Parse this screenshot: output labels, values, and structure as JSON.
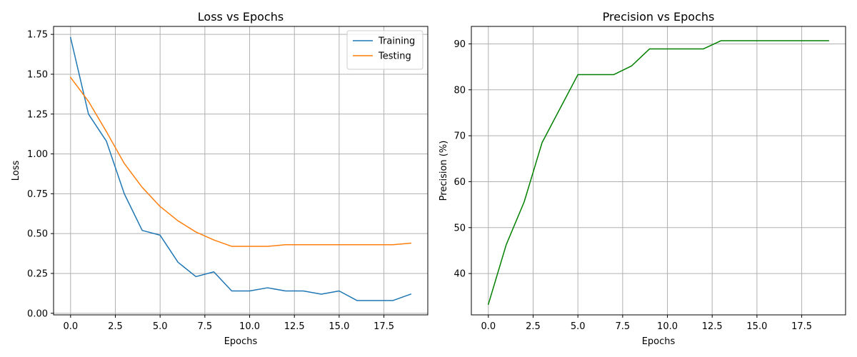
{
  "chart_data": [
    {
      "type": "line",
      "title": "Loss vs Epochs",
      "xlabel": "Epochs",
      "ylabel": "Loss",
      "xlim": [
        -0.95,
        19.95
      ],
      "ylim": [
        -0.01,
        1.8
      ],
      "xticks": [
        0.0,
        2.5,
        5.0,
        7.5,
        10.0,
        12.5,
        15.0,
        17.5
      ],
      "xtick_labels": [
        "0.0",
        "2.5",
        "5.0",
        "7.5",
        "10.0",
        "12.5",
        "15.0",
        "17.5"
      ],
      "yticks": [
        0.0,
        0.25,
        0.5,
        0.75,
        1.0,
        1.25,
        1.5,
        1.75
      ],
      "ytick_labels": [
        "0.00",
        "0.25",
        "0.50",
        "0.75",
        "1.00",
        "1.25",
        "1.50",
        "1.75"
      ],
      "grid": true,
      "legend_position": "top-right",
      "x": [
        0,
        1,
        2,
        3,
        4,
        5,
        6,
        7,
        8,
        9,
        10,
        11,
        12,
        13,
        14,
        15,
        16,
        17,
        18,
        19
      ],
      "series": [
        {
          "name": "Training",
          "color": "#1f77b4",
          "values": [
            1.73,
            1.25,
            1.08,
            0.75,
            0.52,
            0.49,
            0.32,
            0.23,
            0.26,
            0.14,
            0.14,
            0.16,
            0.14,
            0.14,
            0.12,
            0.14,
            0.08,
            0.08,
            0.08,
            0.12
          ]
        },
        {
          "name": "Testing",
          "color": "#ff7f0e",
          "values": [
            1.48,
            1.33,
            1.14,
            0.94,
            0.79,
            0.67,
            0.58,
            0.51,
            0.46,
            0.42,
            0.42,
            0.42,
            0.43,
            0.43,
            0.43,
            0.43,
            0.43,
            0.43,
            0.43,
            0.44
          ]
        }
      ]
    },
    {
      "type": "line",
      "title": "Precision vs Epochs",
      "xlabel": "Epochs",
      "ylabel": "Precision (%)",
      "xlim": [
        -0.95,
        19.95
      ],
      "ylim": [
        31.0,
        93.8
      ],
      "xticks": [
        0.0,
        2.5,
        5.0,
        7.5,
        10.0,
        12.5,
        15.0,
        17.5
      ],
      "xtick_labels": [
        "0.0",
        "2.5",
        "5.0",
        "7.5",
        "10.0",
        "12.5",
        "15.0",
        "17.5"
      ],
      "yticks": [
        40,
        50,
        60,
        70,
        80,
        90
      ],
      "ytick_labels": [
        "40",
        "50",
        "60",
        "70",
        "80",
        "90"
      ],
      "grid": true,
      "x": [
        0,
        1,
        2,
        3,
        4,
        5,
        6,
        7,
        8,
        9,
        10,
        11,
        12,
        13,
        14,
        15,
        16,
        17,
        18,
        19
      ],
      "series": [
        {
          "color": "#008000",
          "values": [
            33.3,
            46.3,
            55.6,
            68.5,
            75.9,
            83.3,
            83.3,
            83.3,
            85.2,
            88.9,
            88.9,
            88.9,
            88.9,
            90.7,
            90.7,
            90.7,
            90.7,
            90.7,
            90.7,
            90.7
          ]
        }
      ]
    }
  ]
}
